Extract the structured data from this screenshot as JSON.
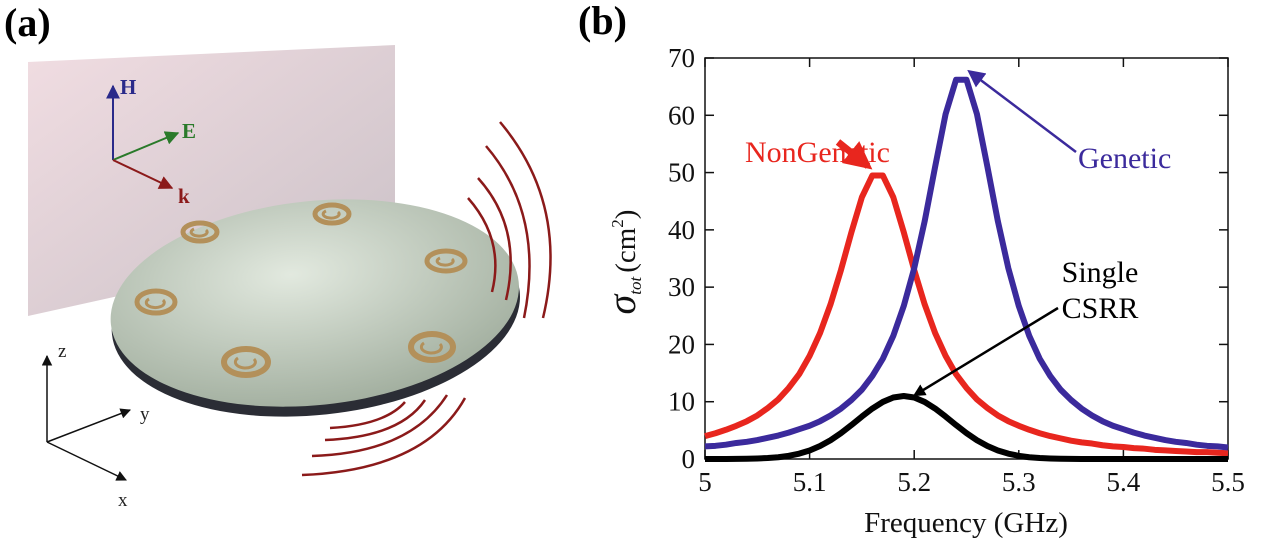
{
  "panel_a": {
    "label": "(a)",
    "field_labels": {
      "H": "H",
      "E": "E",
      "k": "k"
    },
    "axes": {
      "x": "x",
      "y": "y",
      "z": "z"
    }
  },
  "chart_data": {
    "type": "line",
    "panel_label": "(b)",
    "xlabel": "Frequency (GHz)",
    "ylabel": {
      "symbol": "σ",
      "subscript": "tot",
      "unit_open": "(cm",
      "unit_power": "2",
      "unit_close": ")"
    },
    "x": [
      5,
      5.01,
      5.02,
      5.03,
      5.04,
      5.05,
      5.06,
      5.07,
      5.08,
      5.09,
      5.1,
      5.11,
      5.12,
      5.13,
      5.14,
      5.15,
      5.16,
      5.17,
      5.18,
      5.19,
      5.2,
      5.21,
      5.22,
      5.23,
      5.24,
      5.25,
      5.26,
      5.27,
      5.28,
      5.29,
      5.3,
      5.31,
      5.32,
      5.33,
      5.34,
      5.35,
      5.36,
      5.37,
      5.38,
      5.39,
      5.4,
      5.41,
      5.42,
      5.43,
      5.44,
      5.45,
      5.46,
      5.47,
      5.48,
      5.49,
      5.5
    ],
    "series": [
      {
        "name": "NonGenetic",
        "color": "#e8261e",
        "values": [
          4.0,
          4.5,
          5.1,
          5.8,
          6.6,
          7.6,
          8.9,
          10.4,
          12.4,
          14.8,
          18.0,
          22.0,
          27.0,
          33.0,
          39.6,
          45.7,
          49.5,
          49.5,
          45.7,
          39.6,
          33.0,
          27.0,
          22.0,
          18.0,
          14.8,
          12.4,
          10.4,
          8.9,
          7.6,
          6.6,
          5.8,
          5.1,
          4.5,
          4.0,
          3.6,
          3.2,
          2.9,
          2.7,
          2.4,
          2.2,
          2.1,
          1.9,
          1.8,
          1.6,
          1.5,
          1.4,
          1.3,
          1.2,
          1.2,
          1.1,
          1.0
        ]
      },
      {
        "name": "Genetic",
        "color": "#3b2a9c",
        "values": [
          2.2,
          2.3,
          2.5,
          2.8,
          3.0,
          3.3,
          3.7,
          4.1,
          4.6,
          5.2,
          5.8,
          6.6,
          7.6,
          8.8,
          10.3,
          12.1,
          14.5,
          17.5,
          21.5,
          26.7,
          33.3,
          41.5,
          51.0,
          60.2,
          66.2,
          66.2,
          60.2,
          51.0,
          41.5,
          33.3,
          26.7,
          21.5,
          17.5,
          14.5,
          12.1,
          10.3,
          8.8,
          7.6,
          6.6,
          5.8,
          5.2,
          4.6,
          4.1,
          3.7,
          3.3,
          3.0,
          2.8,
          2.5,
          2.3,
          2.2,
          2.0
        ]
      },
      {
        "name": "Single CSRR",
        "color": "#000000",
        "values": [
          0,
          0,
          0.01,
          0.02,
          0.04,
          0.09,
          0.17,
          0.31,
          0.55,
          0.93,
          1.49,
          2.27,
          3.28,
          4.52,
          5.93,
          7.41,
          8.81,
          9.96,
          10.73,
          11.0,
          10.73,
          9.96,
          8.81,
          7.41,
          5.93,
          4.52,
          3.28,
          2.27,
          1.49,
          0.93,
          0.55,
          0.31,
          0.17,
          0.09,
          0.04,
          0.02,
          0.01,
          0,
          0,
          0,
          0,
          0,
          0,
          0,
          0,
          0,
          0,
          0,
          0,
          0,
          0
        ]
      }
    ],
    "xlim": [
      5,
      5.5
    ],
    "xticks": [
      5,
      5.1,
      5.2,
      5.3,
      5.4,
      5.5
    ],
    "ylim": [
      0,
      70
    ],
    "yticks": [
      0,
      10,
      20,
      30,
      40,
      50,
      60,
      70
    ]
  }
}
